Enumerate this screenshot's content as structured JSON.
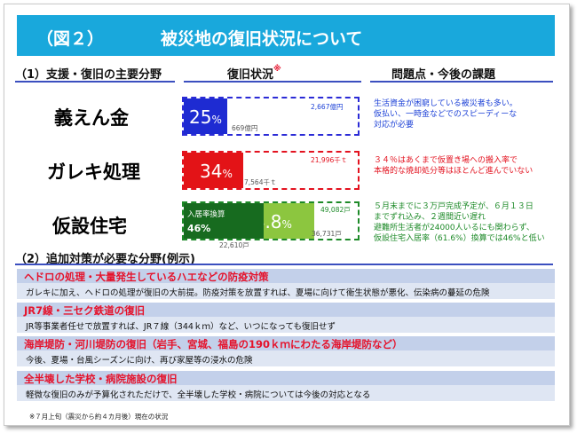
{
  "title": {
    "fig": "（図２）",
    "text": "被災地の復旧状況について"
  },
  "headers": {
    "areas": "（1）支援・復旧の主要分野",
    "status": "復旧状況",
    "status_mark": "※",
    "issues": "問題点・今後の課題",
    "extra": "（2）追加対策が必要な分野(例示)"
  },
  "rows": [
    {
      "category": "義えん金",
      "category_color": "#1a3fd6",
      "bar_color": "#1e2bd2",
      "fill_fraction": 0.25,
      "percent_main": "25",
      "percent_sign": "%",
      "target": "2,667億円",
      "done": "669億円",
      "issues": [
        "生活資金が困窮している被災者も多い。",
        "仮払い、一時金などでのスピーディーな",
        "対応が必要"
      ],
      "issue_color": "#1a3fd6"
    },
    {
      "category": "ガレキ処理",
      "category_color": "#e3121f",
      "bar_color": "#e31317",
      "fill_fraction": 0.34,
      "percent_main": "34",
      "percent_sign": "%",
      "target": "21,996千ｔ",
      "done": "7,564千ｔ",
      "issues": [
        "３４％はあくまで仮置き場への搬入率で",
        "本格的な焼却処分等はほとんど進んでいない"
      ],
      "issue_color": "#e3121f"
    },
    {
      "category": "仮設住宅",
      "category_color": "#1d8a28",
      "bar_color": "#176b1f",
      "fill_fraction": 0.748,
      "occupancy_fraction": 0.46,
      "percent_main": "74.8",
      "percent_sign": "%",
      "occupancy_label": "入居率換算",
      "occupancy_value": "46%",
      "target": "49,082戸",
      "done": "36,731戸",
      "occupied": "22,610戸",
      "issues": [
        "５月末までに３万戸完成予定が、６月１３日",
        "までずれ込み、２週間近い遅れ",
        "避難所生活者が24000人いるにも関わらず、",
        "仮設住宅入居率（61.6%）換算では46%と低い"
      ],
      "issue_color": "#1d8a28"
    }
  ],
  "extras": [
    {
      "heading": "ヘドロの処理・大量発生しているハエなどの防疫対策",
      "body": "ガレキに加え、ヘドロの処理が復旧の大前提。防疫対策を放置すれば、夏場に向けて衛生状態が悪化、伝染病の蔓延の危険"
    },
    {
      "heading": "JR7線・三セク鉄道の復旧",
      "body": "JR等事業者任せで放置すれば、JR７線（344ｋｍ）など、いつになっても復旧せず"
    },
    {
      "heading": "海岸堤防・河川堤防の復旧（岩手、宮城、福島の190ｋｍにわたる海岸堤防など）",
      "body": "今後、夏場・台風シーズンに向け、再び家屋等の浸水の危険"
    },
    {
      "heading": "全半壊した学校・病院施設の復旧",
      "body": "軽微な復旧のみが予算化されただけで、全半壊した学校・病院については今後の対応となる"
    }
  ],
  "footnote": "※７月上旬（震災から約４カ月後）現在の状況",
  "colors": {
    "title_bg": "#19a8dc",
    "header_line": "#3b4fbf",
    "dashed": "#2b2bd6",
    "box_bg": "#dfe6f3",
    "box_head_bg": "#c3d0ea",
    "box_head_text": "#e5122b",
    "housing_light": "#8cc63f"
  }
}
